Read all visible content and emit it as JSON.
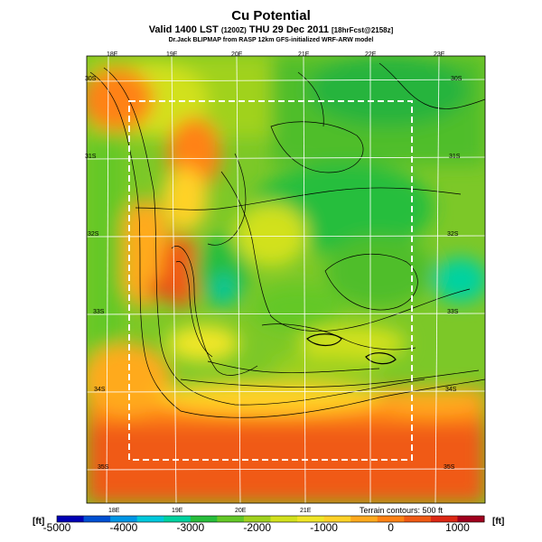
{
  "header": {
    "title": "Cu Potential",
    "valid_line": "Valid 1400 LST",
    "valid_code": "(1200Z)",
    "valid_date": "THU 29 Dec 2011",
    "run_info": "[18hrFcst@2158z]",
    "credit": "Dr.Jack BLIPMAP from RASP 12km GFS-initialized WRF-ARW model"
  },
  "map": {
    "top_lon_labels": [
      "18E",
      "19E",
      "20E",
      "21E",
      "22E",
      "23E"
    ],
    "bottom_lon_labels": [
      "18E",
      "19E",
      "20E",
      "21E"
    ],
    "right_lat_labels": [
      "30S",
      "31S",
      "32S",
      "33S",
      "34S",
      "35S"
    ],
    "left_lat_labels": [
      "30S",
      "31S",
      "32S",
      "33S",
      "34S",
      "35S"
    ],
    "terrain_note": "Terrain contours: 500 ft"
  },
  "colorbar": {
    "unit_left": "[ft]",
    "unit_right": "[ft]",
    "ticks": [
      "-5000",
      "-4000",
      "-3000",
      "-2000",
      "-1000",
      "0",
      "1000"
    ],
    "min": -5000,
    "max": 1400,
    "colors": [
      "#0000b4",
      "#0050d2",
      "#0096e6",
      "#00c8dc",
      "#00d2a0",
      "#28be3c",
      "#64c828",
      "#a0d21e",
      "#d2e11e",
      "#f0e628",
      "#ffd228",
      "#ffaa1e",
      "#ff8214",
      "#f05a14",
      "#dc2814",
      "#a0001e"
    ]
  }
}
